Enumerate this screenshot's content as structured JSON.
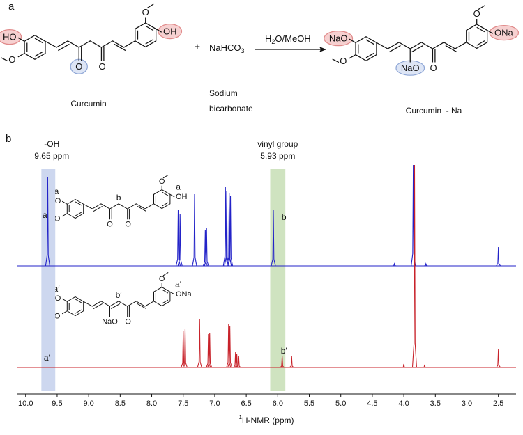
{
  "panel_a": {
    "label": "a",
    "curcumin": {
      "atoms": [
        "HO",
        "O",
        "O",
        "O",
        "O",
        "OH"
      ],
      "name": "Curcumin"
    },
    "plus": "+",
    "reagent": {
      "formula": [
        "NaHCO",
        "3"
      ],
      "name": [
        "Sodium",
        "bicarbonate"
      ]
    },
    "conditions": [
      "H",
      "2",
      "O/MeOH"
    ],
    "product": {
      "atoms": [
        "NaO",
        "O",
        "NaO",
        "O",
        "O",
        "ONa"
      ],
      "name": "Curcumin  - Na"
    }
  },
  "panel_b": {
    "label": "b",
    "structures": [
      {
        "atoms": [
          "HO",
          "O",
          "O",
          "O",
          "O",
          "OH"
        ],
        "marks": [
          "a",
          "a",
          "b"
        ]
      },
      {
        "atoms": [
          "NaO",
          "O",
          "NaO",
          "O",
          "O",
          "ONa"
        ],
        "marks": [
          "a′",
          "a′",
          "b′"
        ]
      }
    ]
  },
  "chart_data": {
    "type": "spectrum",
    "x_label": {
      "sup": "1",
      "text": "H-NMR (ppm)"
    },
    "xlim": [
      10.13,
      2.22
    ],
    "xticks": [
      {
        "value": 10,
        "label": "10.0"
      },
      9.5,
      {
        "value": 9,
        "label": "9.0"
      },
      8.5,
      {
        "value": 8,
        "label": "8.0"
      },
      7.5,
      {
        "value": 7,
        "label": "7.0"
      },
      6.5,
      {
        "value": 6,
        "label": "6.0"
      },
      5.5,
      {
        "value": 5,
        "label": "5.0"
      },
      4.5,
      {
        "value": 4,
        "label": "4.0"
      },
      3.5,
      {
        "value": 3,
        "label": "3.0"
      },
      2.5
    ],
    "ylim": [
      0,
      300
    ],
    "bands": [
      {
        "from": 9.75,
        "to": 9.53,
        "color": "#cdd7ef",
        "labels": [
          "-OH",
          "9.65 ppm"
        ]
      },
      {
        "from": 6.12,
        "to": 5.88,
        "color": "#cfe3c0",
        "labels": [
          "vinyl group",
          "5.93 ppm"
        ]
      }
    ],
    "series": [
      {
        "color": "#2323c8",
        "peak_labels": [
          "a",
          "b"
        ],
        "x": [
          9.65,
          7.58,
          7.55,
          7.32,
          7.15,
          7.13,
          6.83,
          6.81,
          6.77,
          6.75,
          6.07,
          4.15,
          3.85,
          3.65,
          2.5
        ],
        "values": [
          127,
          80,
          75,
          103,
          52,
          55,
          113,
          108,
          104,
          100,
          80,
          3,
          145,
          3,
          27
        ]
      },
      {
        "color": "#c8222a",
        "peak_labels": [
          "a′",
          "b′"
        ],
        "x": [
          7.5,
          7.47,
          7.24,
          7.1,
          7.08,
          6.78,
          6.76,
          6.67,
          6.65,
          6.62,
          5.93,
          5.78,
          4.0,
          3.83,
          3.67,
          2.5
        ],
        "values": [
          52,
          56,
          69,
          48,
          50,
          63,
          60,
          22,
          20,
          16,
          16,
          17,
          5,
          291,
          4,
          26
        ]
      }
    ]
  }
}
